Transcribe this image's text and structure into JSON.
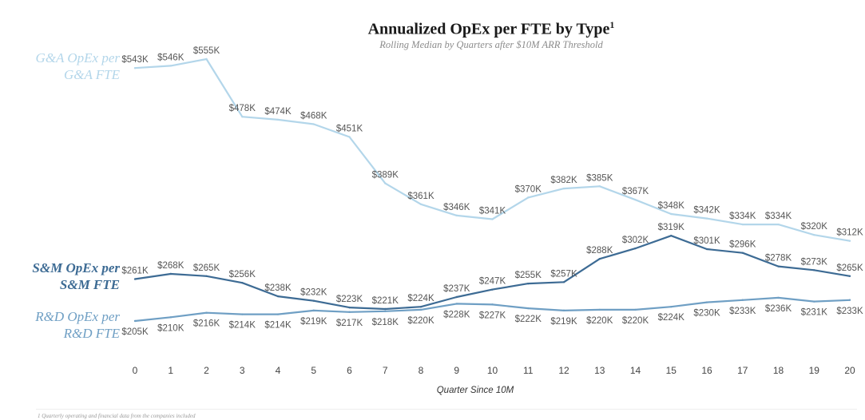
{
  "chart_data": {
    "type": "line",
    "title": "Annualized OpEx per FTE by Type",
    "title_superscript": "1",
    "subtitle": "Rolling Median by Quarters after $10M ARR Threshold",
    "xlabel": "Quarter Since 10M",
    "ylabel": "",
    "x": [
      0,
      1,
      2,
      3,
      4,
      5,
      6,
      7,
      8,
      9,
      10,
      11,
      12,
      13,
      14,
      15,
      16,
      17,
      18,
      19,
      20
    ],
    "ylim": [
      180,
      580
    ],
    "grid": false,
    "legend": "left, inline labels",
    "series": [
      {
        "name": "G&A OpEx per G&A FTE",
        "color": "#b3d6ea",
        "label_position": "above",
        "values": [
          543,
          546,
          555,
          478,
          474,
          468,
          451,
          389,
          361,
          346,
          341,
          370,
          382,
          385,
          367,
          348,
          342,
          334,
          334,
          320,
          312
        ],
        "data_labels": [
          "$543K",
          "$546K",
          "$555K",
          "$478K",
          "$474K",
          "$468K",
          "$451K",
          "$389K",
          "$361K",
          "$346K",
          "$341K",
          "$370K",
          "$382K",
          "$385K",
          "$367K",
          "$348K",
          "$342K",
          "$334K",
          "$334K",
          "$320K",
          "$312K"
        ]
      },
      {
        "name": "S&M OpEx per S&M FTE",
        "color": "#3d6b94",
        "label_position": "above",
        "values": [
          261,
          268,
          265,
          256,
          238,
          232,
          223,
          221,
          224,
          237,
          247,
          255,
          257,
          288,
          302,
          319,
          301,
          296,
          278,
          273,
          265
        ],
        "data_labels": [
          "$261K",
          "$268K",
          "$265K",
          "$256K",
          "$238K",
          "$232K",
          "$223K",
          "$221K",
          "$224K",
          "$237K",
          "$247K",
          "$255K",
          "$257K",
          "$288K",
          "$302K",
          "$319K",
          "$301K",
          "$296K",
          "$278K",
          "$273K",
          "$265K"
        ]
      },
      {
        "name": "R&D OpEx per R&D FTE",
        "color": "#6f9fc4",
        "label_position": "below",
        "values": [
          205,
          210,
          216,
          214,
          214,
          219,
          217,
          218,
          220,
          228,
          227,
          222,
          219,
          220,
          220,
          224,
          230,
          233,
          236,
          231,
          233
        ],
        "data_labels": [
          "$205K",
          "$210K",
          "$216K",
          "$214K",
          "$214K",
          "$219K",
          "$217K",
          "$218K",
          "$220K",
          "$228K",
          "$227K",
          "$222K",
          "$219K",
          "$220K",
          "$220K",
          "$224K",
          "$230K",
          "$233K",
          "$236K",
          "$231K",
          "$233K"
        ]
      }
    ]
  },
  "labels": {
    "ga_line1": "G&A OpEx per",
    "ga_line2": "G&A FTE",
    "sm_line1": "S&M OpEx per",
    "sm_line2": "S&M FTE",
    "rd_line1": "R&D OpEx per",
    "rd_line2": "R&D FTE"
  },
  "footnote": "1 Quarterly operating and financial data from the companies included"
}
